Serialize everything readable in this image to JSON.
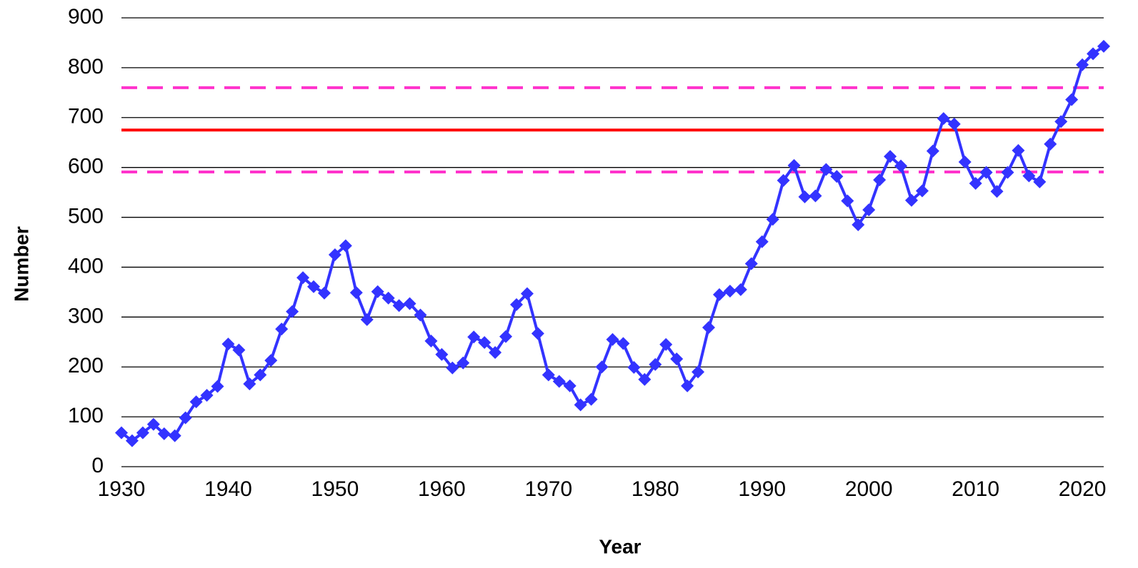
{
  "chart_data": {
    "type": "line",
    "x_label": "Year",
    "y_label": "Number",
    "x": [
      1930,
      1931,
      1932,
      1933,
      1934,
      1935,
      1936,
      1937,
      1938,
      1939,
      1940,
      1941,
      1942,
      1943,
      1944,
      1945,
      1946,
      1947,
      1948,
      1949,
      1950,
      1951,
      1952,
      1953,
      1954,
      1955,
      1956,
      1957,
      1958,
      1959,
      1960,
      1961,
      1962,
      1963,
      1964,
      1965,
      1966,
      1967,
      1968,
      1969,
      1970,
      1971,
      1972,
      1973,
      1974,
      1975,
      1976,
      1977,
      1978,
      1979,
      1980,
      1981,
      1982,
      1983,
      1984,
      1985,
      1986,
      1987,
      1988,
      1989,
      1990,
      1991,
      1992,
      1993,
      1994,
      1995,
      1996,
      1997,
      1998,
      1999,
      2000,
      2001,
      2002,
      2003,
      2004,
      2005,
      2006,
      2007,
      2008,
      2009,
      2010,
      2011,
      2012,
      2013,
      2014,
      2015,
      2016,
      2017,
      2018,
      2019,
      2020,
      2021,
      2022
    ],
    "series": [
      {
        "color": "#3333ff",
        "values": [
          68,
          52,
          68,
          85,
          66,
          62,
          98,
          130,
          143,
          161,
          246,
          234,
          166,
          184,
          213,
          276,
          311,
          379,
          361,
          348,
          425,
          443,
          349,
          295,
          351,
          338,
          323,
          327,
          304,
          252,
          225,
          198,
          208,
          260,
          249,
          229,
          261,
          325,
          347,
          267,
          184,
          171,
          162,
          124,
          135,
          200,
          255,
          247,
          199,
          175,
          205,
          245,
          216,
          162,
          190,
          279,
          345,
          352,
          355,
          407,
          451,
          496,
          574,
          604,
          541,
          543,
          596,
          582,
          533,
          485,
          515,
          575,
          622,
          603,
          534,
          553,
          633,
          698,
          687,
          611,
          568,
          590,
          552,
          590,
          634,
          583,
          571,
          647,
          692,
          736,
          806,
          828,
          843
        ]
      }
    ],
    "reference_lines": [
      {
        "value": 675,
        "color": "#ff0000",
        "dashed": false
      },
      {
        "value": 760,
        "color": "#ff33cc",
        "dashed": true
      },
      {
        "value": 591,
        "color": "#ff33cc",
        "dashed": true
      }
    ],
    "xlim": [
      1930,
      2022
    ],
    "xticks": [
      1930,
      1940,
      1950,
      1960,
      1970,
      1980,
      1990,
      2000,
      2010,
      2020
    ],
    "ylim": [
      0,
      900
    ],
    "yticks": [
      0,
      100,
      200,
      300,
      400,
      500,
      600,
      700,
      800,
      900
    ],
    "grid": true
  }
}
